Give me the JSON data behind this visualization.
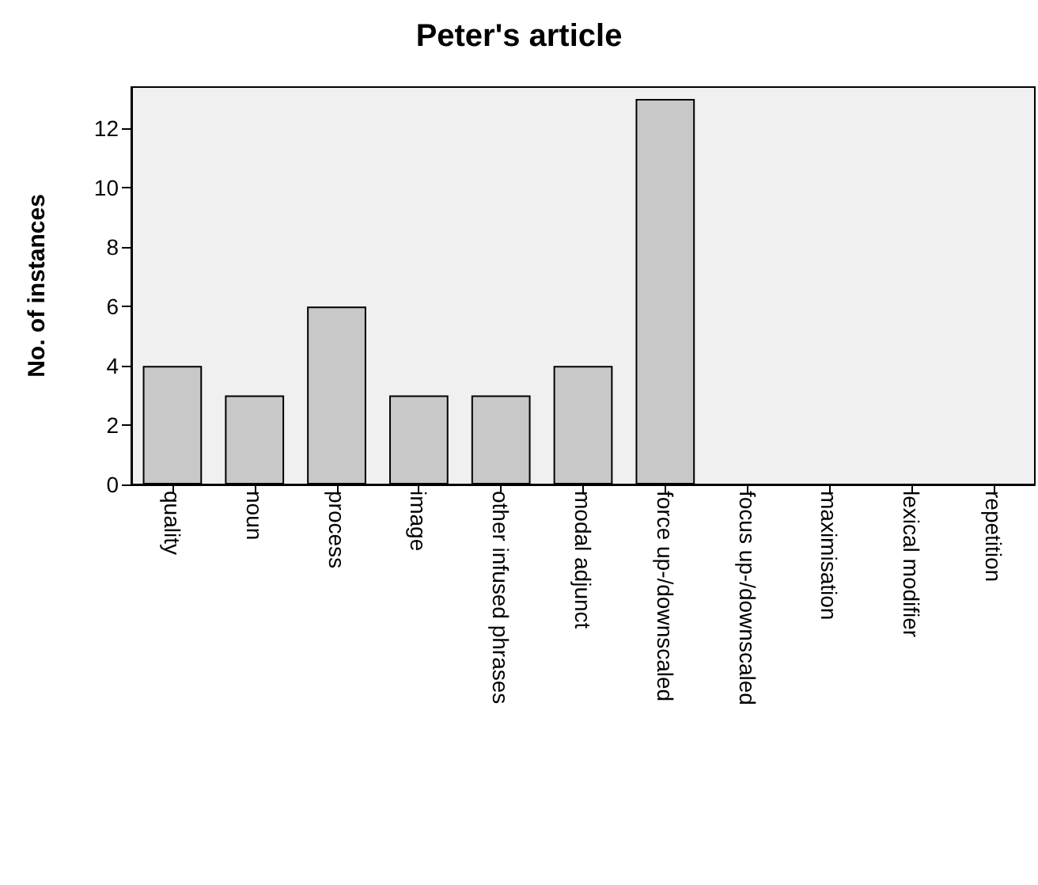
{
  "chart_data": {
    "type": "bar",
    "title": "Peter's article",
    "ylabel": "No. of instances",
    "categories": [
      "quality",
      "noun",
      "process",
      "image",
      "other infused phrases",
      "modal adjunct",
      "force up-/downscaled",
      "focus up-/downscaled",
      "maximisation",
      "lexical modifier",
      "repetition"
    ],
    "values": [
      4,
      3,
      6,
      3,
      3,
      4,
      13,
      0,
      0,
      0,
      0
    ],
    "color": "#c8c8c8",
    "ylim": [
      0,
      13.4
    ],
    "yticks": [
      0,
      2,
      4,
      6,
      8,
      10,
      12
    ],
    "grid": false
  }
}
